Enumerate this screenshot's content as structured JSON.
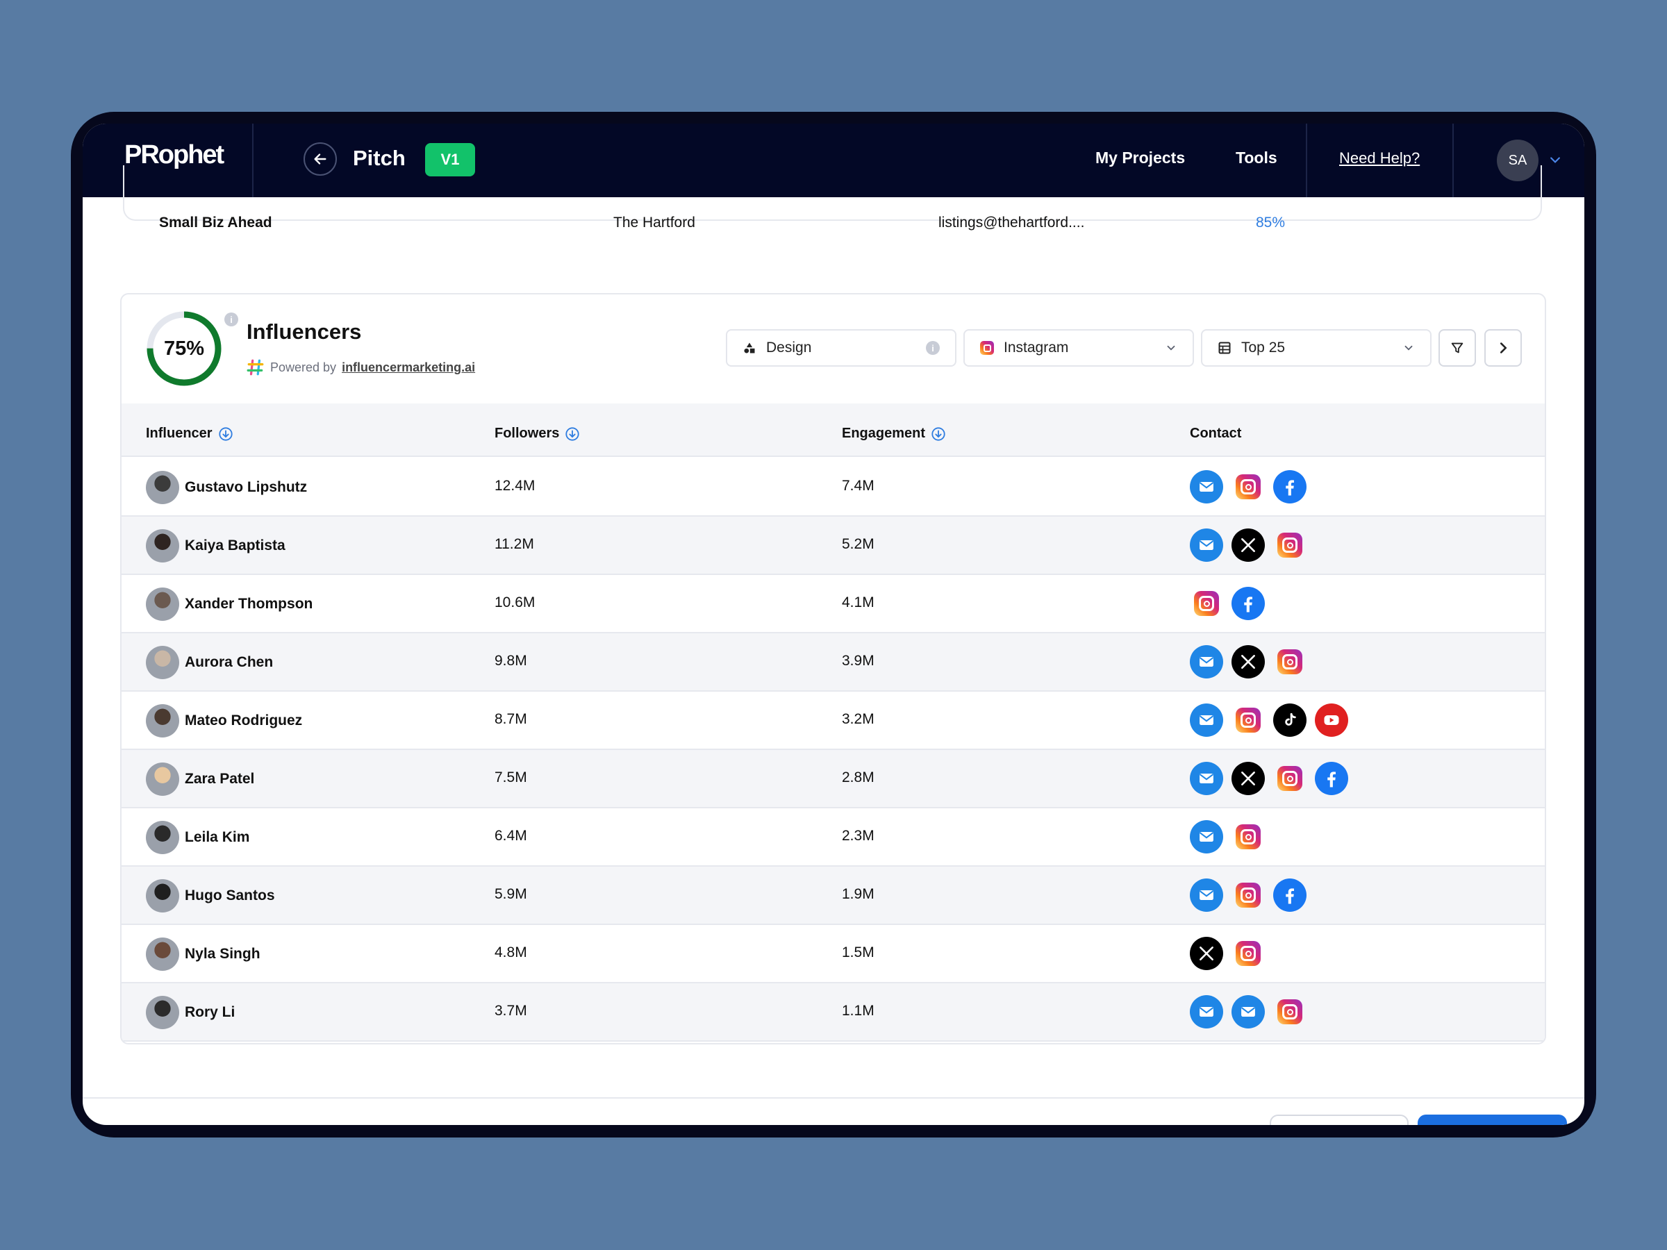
{
  "app": {
    "logo": "PRophet",
    "page_title": "Pitch",
    "version": "V1",
    "nav": {
      "projects": "My Projects",
      "tools": "Tools",
      "help": "Need Help?"
    },
    "user_initials": "SA"
  },
  "previous_row": {
    "name": "Small Biz Ahead",
    "company": "The Hartford",
    "email": "listings@thehartford....",
    "score": "85%"
  },
  "influencers_card": {
    "score": "75%",
    "score_fraction": 0.75,
    "title": "Influencers",
    "powered_prefix": "Powered by",
    "powered_link": "influencermarketing.ai",
    "filters": {
      "category": "Design",
      "platform": "Instagram",
      "limit": "Top 25"
    },
    "columns": {
      "influencer": "Influencer",
      "followers": "Followers",
      "engagement": "Engagement",
      "contact": "Contact"
    },
    "rows": [
      {
        "name": "Gustavo Lipshutz",
        "followers": "12.4M",
        "engagement": "7.4M",
        "contacts": [
          "email",
          "instagram",
          "facebook"
        ]
      },
      {
        "name": "Kaiya Baptista",
        "followers": "11.2M",
        "engagement": "5.2M",
        "contacts": [
          "email",
          "x",
          "instagram"
        ]
      },
      {
        "name": "Xander Thompson",
        "followers": "10.6M",
        "engagement": "4.1M",
        "contacts": [
          "instagram",
          "facebook"
        ]
      },
      {
        "name": "Aurora Chen",
        "followers": "9.8M",
        "engagement": "3.9M",
        "contacts": [
          "email",
          "x",
          "instagram"
        ]
      },
      {
        "name": "Mateo Rodriguez",
        "followers": "8.7M",
        "engagement": "3.2M",
        "contacts": [
          "email",
          "instagram",
          "tiktok",
          "youtube"
        ]
      },
      {
        "name": "Zara Patel",
        "followers": "7.5M",
        "engagement": "2.8M",
        "contacts": [
          "email",
          "x",
          "instagram",
          "facebook"
        ]
      },
      {
        "name": "Leila Kim",
        "followers": "6.4M",
        "engagement": "2.3M",
        "contacts": [
          "email",
          "instagram"
        ]
      },
      {
        "name": "Hugo Santos",
        "followers": "5.9M",
        "engagement": "1.9M",
        "contacts": [
          "email",
          "instagram",
          "facebook"
        ]
      },
      {
        "name": "Nyla Singh",
        "followers": "4.8M",
        "engagement": "1.5M",
        "contacts": [
          "x",
          "instagram"
        ]
      },
      {
        "name": "Rory Li",
        "followers": "3.7M",
        "engagement": "1.1M",
        "contacts": [
          "email",
          "email",
          "instagram"
        ]
      }
    ]
  },
  "colors": {
    "navbar": "#030826",
    "accent_green": "#12c26a",
    "ring_green": "#0f7a2c",
    "link_blue": "#1b6ee0",
    "score_blue": "#2f7de0"
  }
}
